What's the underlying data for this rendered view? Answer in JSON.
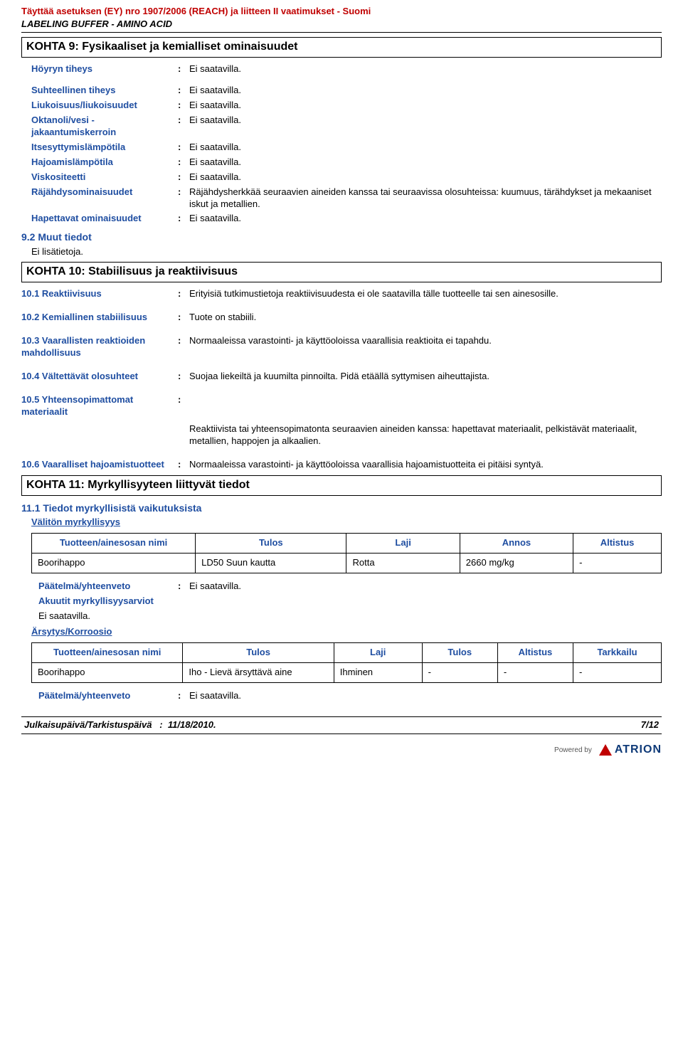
{
  "header": {
    "line1": "Täyttää asetuksen (EY) nro 1907/2006 (REACH) ja liitteen II vaatimukset - Suomi",
    "line2": "LABELING BUFFER - AMINO ACID"
  },
  "section9": {
    "title": "KOHTA 9: Fysikaaliset ja kemialliset ominaisuudet",
    "rows": [
      {
        "key": "Höyryn tiheys",
        "val": "Ei saatavilla."
      },
      {
        "key": "Suhteellinen tiheys",
        "val": "Ei saatavilla."
      },
      {
        "key": "Liukoisuus/liukoisuudet",
        "val": "Ei saatavilla."
      },
      {
        "key": "Oktanoli/vesi - jakaantumiskerroin",
        "val": "Ei saatavilla."
      },
      {
        "key": "Itsesyttymislämpötila",
        "val": "Ei saatavilla."
      },
      {
        "key": "Hajoamislämpötila",
        "val": "Ei saatavilla."
      },
      {
        "key": "Viskositeetti",
        "val": "Ei saatavilla."
      },
      {
        "key": "Räjähdysominaisuudet",
        "val": "Räjähdysherkkää seuraavien aineiden kanssa tai seuraavissa olosuhteissa: kuumuus, tärähdykset ja mekaaniset iskut ja metallien."
      },
      {
        "key": "Hapettavat ominaisuudet",
        "val": "Ei saatavilla."
      }
    ],
    "sub92": {
      "heading": "9.2 Muut tiedot",
      "text": "Ei lisätietoja."
    }
  },
  "section10": {
    "title": "KOHTA 10: Stabiilisuus ja reaktiivisuus",
    "rows": [
      {
        "key": "10.1 Reaktiivisuus",
        "val": "Erityisiä tutkimustietoja reaktiivisuudesta ei ole saatavilla tälle tuotteelle tai sen ainesosille."
      },
      {
        "key": "10.2 Kemiallinen stabiilisuus",
        "val": "Tuote on stabiili."
      },
      {
        "key": "10.3 Vaarallisten reaktioiden mahdollisuus",
        "val": "Normaaleissa varastointi- ja käyttöoloissa vaarallisia reaktioita ei tapahdu."
      },
      {
        "key": "10.4 Vältettävät olosuhteet",
        "val": "Suojaa liekeiltä ja kuumilta pinnoilta. Pidä etäällä syttymisen aiheuttajista."
      },
      {
        "key": "10.5 Yhteensopimattomat materiaalit",
        "val": "",
        "extra": "Reaktiivista tai yhteensopimatonta seuraavien aineiden kanssa: hapettavat materiaalit, pelkistävät materiaalit, metallien, happojen ja alkaalien."
      },
      {
        "key": "10.6 Vaaralliset hajoamistuotteet",
        "val": "Normaaleissa varastointi- ja käyttöoloissa vaarallisia hajoamistuotteita ei pitäisi syntyä."
      }
    ]
  },
  "section11": {
    "title": "KOHTA 11: Myrkyllisyyteen liittyvät tiedot",
    "sub111": "11.1 Tiedot myrkyllisistä vaikutuksista",
    "valiton": "Välitön myrkyllisyys",
    "table1": {
      "headers": [
        "Tuotteen/ainesosan nimi",
        "Tulos",
        "Laji",
        "Annos",
        "Altistus"
      ],
      "rows": [
        [
          "Boorihappo",
          "LD50 Suun kautta",
          "Rotta",
          "2660 mg/kg",
          "-"
        ]
      ],
      "colwidths": [
        "26%",
        "24%",
        "18%",
        "18%",
        "14%"
      ]
    },
    "paatelma": {
      "key": "Päätelmä/yhteenveto",
      "val": "Ei saatavilla."
    },
    "akuutit": {
      "key": "Akuutit myrkyllisyysarviot",
      "val": "Ei saatavilla."
    },
    "arsytys": "Ärsytys/Korroosio",
    "table2": {
      "headers": [
        "Tuotteen/ainesosan nimi",
        "Tulos",
        "Laji",
        "Tulos",
        "Altistus",
        "Tarkkailu"
      ],
      "rows": [
        [
          "Boorihappo",
          "Iho - Lievä ärsyttävä aine",
          "Ihminen",
          "-",
          "-",
          "-"
        ]
      ],
      "colwidths": [
        "24%",
        "24%",
        "14%",
        "12%",
        "12%",
        "14%"
      ]
    },
    "paatelma2": {
      "key": "Päätelmä/yhteenveto",
      "val": "Ei saatavilla."
    }
  },
  "footer": {
    "datelabel": "Julkaisupäivä/Tarkistuspäivä",
    "datesep": ":",
    "date": "11/18/2010.",
    "page": "7/12",
    "powered": "Powered by",
    "brand": "ATRION"
  },
  "colors": {
    "red": "#c00000",
    "blue": "#1f4ea1",
    "black": "#000000"
  }
}
